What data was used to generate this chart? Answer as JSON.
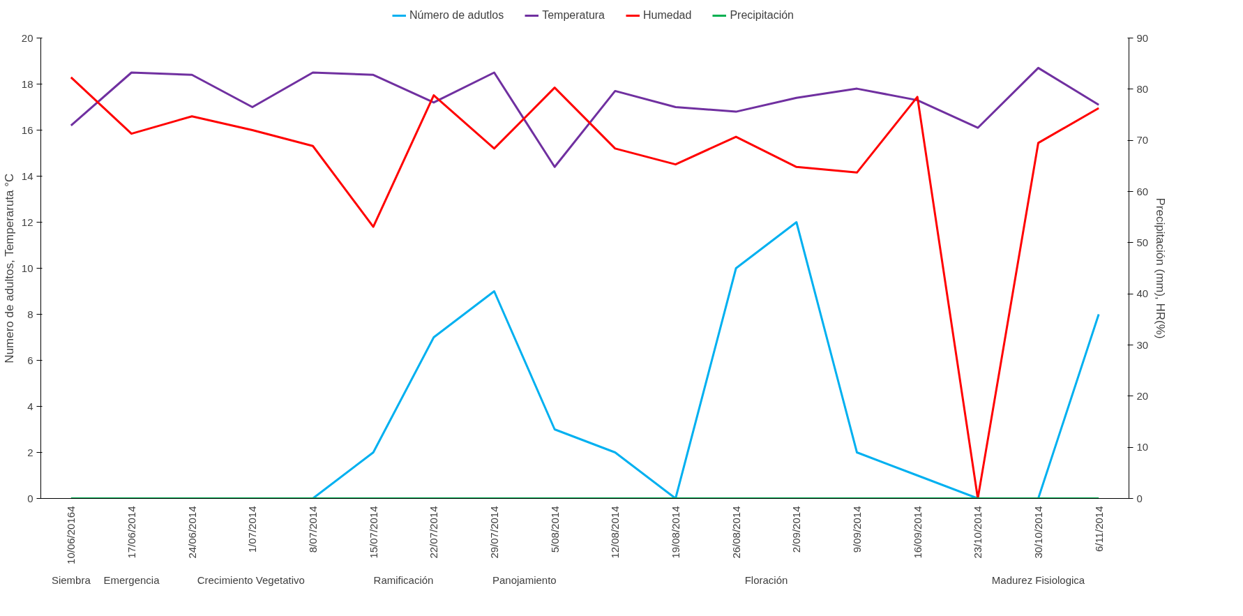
{
  "chart_data": {
    "type": "line",
    "categories": [
      "10/06/20164",
      "17/06/2014",
      "24/06/2014",
      "1/07/2014",
      "8/07/2014",
      "15/07/2014",
      "22/07/2014",
      "29/07/2014",
      "5/08/2014",
      "12/08/2014",
      "19/08/2014",
      "26/08/2014",
      "2/09/2014",
      "9/09/2014",
      "16/09/2014",
      "23/10/2014",
      "30/10/2014",
      "6/11/2014"
    ],
    "series": [
      {
        "name": "Número de adutlos",
        "color": "#00b0f0",
        "values": [
          null,
          null,
          null,
          null,
          0,
          2,
          7,
          9,
          3,
          2,
          0,
          10,
          12,
          2,
          1,
          0,
          0,
          8
        ]
      },
      {
        "name": "Temperatura",
        "color": "#7030a0",
        "values": [
          16.2,
          18.5,
          18.4,
          17.0,
          18.5,
          18.4,
          17.2,
          18.5,
          14.4,
          17.7,
          17.0,
          16.8,
          17.4,
          17.8,
          17.3,
          16.1,
          18.7,
          17.1
        ]
      },
      {
        "name": "Humedad",
        "color": "#ff0000",
        "axis": "y2",
        "values": [
          82.3,
          71.3,
          74.7,
          72,
          68.9,
          53.1,
          78.8,
          68.4,
          80.3,
          68.4,
          65.3,
          70.7,
          64.8,
          63.7,
          78.5,
          0,
          69.5,
          76.3
        ]
      },
      {
        "name": "Precipitación",
        "color": "#00b050",
        "axis": "y2",
        "values": [
          0,
          0,
          0,
          0,
          0,
          0,
          0,
          0,
          0,
          0,
          0,
          0,
          0,
          0,
          0,
          0,
          0,
          0
        ]
      }
    ],
    "ylabel": "Numero de adultos, Temperaruta °C",
    "y2label": "Precipitación (mm), HR(%)",
    "ylim": [
      0,
      20
    ],
    "yticks": [
      0,
      2,
      4,
      6,
      8,
      10,
      12,
      14,
      16,
      18,
      20
    ],
    "y2lim": [
      0,
      90
    ],
    "y2ticks": [
      0,
      10,
      20,
      30,
      40,
      50,
      60,
      70,
      80,
      90
    ],
    "annotations": [
      "Siembra",
      "Emergencia",
      "Crecimiento  Vegetativo",
      "Ramificación",
      "Panojamiento",
      "Floración",
      "Madurez Fisiologica"
    ],
    "legend": "top",
    "grid": false,
    "line_style": "solid",
    "marker": "none"
  }
}
